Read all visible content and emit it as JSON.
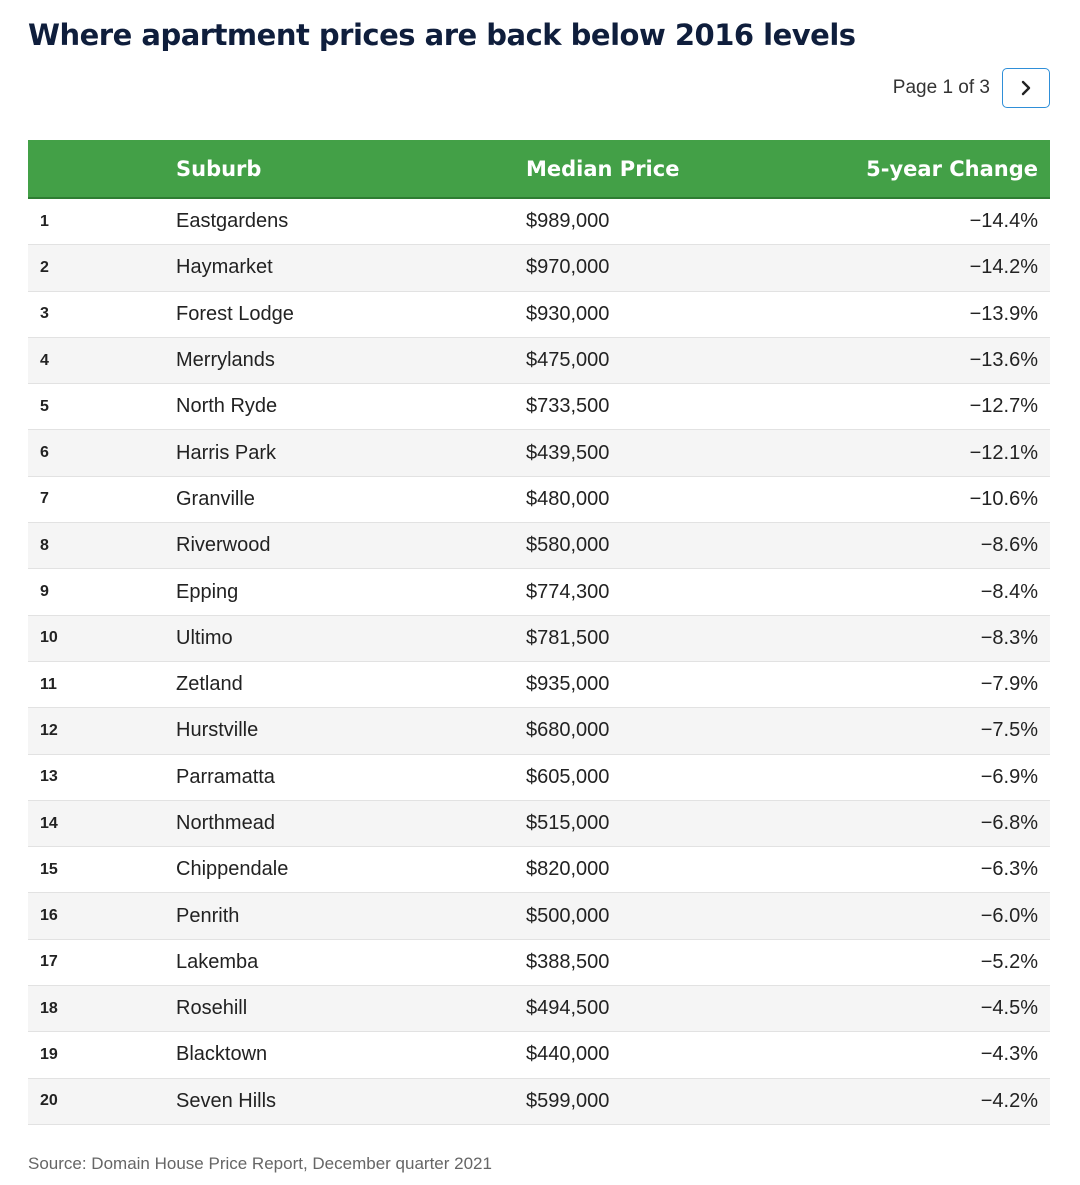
{
  "title": "Where apartment prices are back below 2016 levels",
  "pager": {
    "label": "Page 1 of 3",
    "next_icon": "chevron-right-icon"
  },
  "colors": {
    "header": "#43a047",
    "title": "#0f1e3c",
    "pager_border": "#2f8fd8"
  },
  "table": {
    "columns": [
      "",
      "Suburb",
      "Median Price",
      "5-year Change"
    ],
    "rows": [
      {
        "rank": "1",
        "suburb": "Eastgardens",
        "price": "$989,000",
        "change": "−14.4%"
      },
      {
        "rank": "2",
        "suburb": "Haymarket",
        "price": "$970,000",
        "change": "−14.2%"
      },
      {
        "rank": "3",
        "suburb": "Forest Lodge",
        "price": "$930,000",
        "change": "−13.9%"
      },
      {
        "rank": "4",
        "suburb": "Merrylands",
        "price": "$475,000",
        "change": "−13.6%"
      },
      {
        "rank": "5",
        "suburb": "North Ryde",
        "price": "$733,500",
        "change": "−12.7%"
      },
      {
        "rank": "6",
        "suburb": "Harris Park",
        "price": "$439,500",
        "change": "−12.1%"
      },
      {
        "rank": "7",
        "suburb": "Granville",
        "price": "$480,000",
        "change": "−10.6%"
      },
      {
        "rank": "8",
        "suburb": "Riverwood",
        "price": "$580,000",
        "change": "−8.6%"
      },
      {
        "rank": "9",
        "suburb": "Epping",
        "price": "$774,300",
        "change": "−8.4%"
      },
      {
        "rank": "10",
        "suburb": "Ultimo",
        "price": "$781,500",
        "change": "−8.3%"
      },
      {
        "rank": "11",
        "suburb": "Zetland",
        "price": "$935,000",
        "change": "−7.9%"
      },
      {
        "rank": "12",
        "suburb": "Hurstville",
        "price": "$680,000",
        "change": "−7.5%"
      },
      {
        "rank": "13",
        "suburb": "Parramatta",
        "price": "$605,000",
        "change": "−6.9%"
      },
      {
        "rank": "14",
        "suburb": "Northmead",
        "price": "$515,000",
        "change": "−6.8%"
      },
      {
        "rank": "15",
        "suburb": "Chippendale",
        "price": "$820,000",
        "change": "−6.3%"
      },
      {
        "rank": "16",
        "suburb": "Penrith",
        "price": "$500,000",
        "change": "−6.0%"
      },
      {
        "rank": "17",
        "suburb": "Lakemba",
        "price": "$388,500",
        "change": "−5.2%"
      },
      {
        "rank": "18",
        "suburb": "Rosehill",
        "price": "$494,500",
        "change": "−4.5%"
      },
      {
        "rank": "19",
        "suburb": "Blacktown",
        "price": "$440,000",
        "change": "−4.3%"
      },
      {
        "rank": "20",
        "suburb": "Seven Hills",
        "price": "$599,000",
        "change": "−4.2%"
      }
    ]
  },
  "source": "Source: Domain House Price Report, December quarter 2021"
}
